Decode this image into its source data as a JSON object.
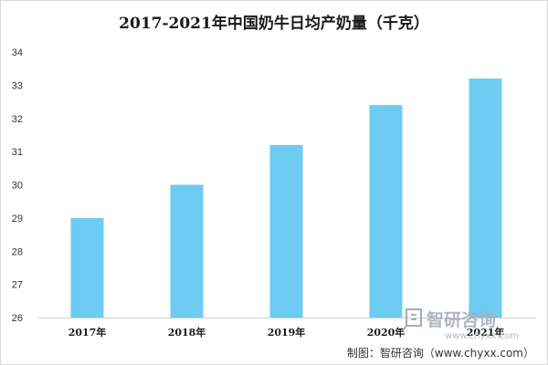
{
  "chart_data": {
    "type": "bar",
    "title": "2017-2021年中国奶牛日均产奶量（千克）",
    "xlabel": "",
    "ylabel": "",
    "categories": [
      "2017年",
      "2018年",
      "2019年",
      "2020年",
      "2021年"
    ],
    "values": [
      29.0,
      30.0,
      31.2,
      32.4,
      33.2
    ],
    "ylim": [
      26,
      34
    ],
    "yticks": [
      "26",
      "27",
      "28",
      "29",
      "30",
      "31",
      "32",
      "33",
      "34"
    ],
    "bar_color": "#6ecbf2",
    "grid": false,
    "legend": "none"
  },
  "watermark": {
    "brand": "智研咨询",
    "url": "www.chyxx.com"
  },
  "source_text": "制图：智研咨询（www.chyxx.com）"
}
